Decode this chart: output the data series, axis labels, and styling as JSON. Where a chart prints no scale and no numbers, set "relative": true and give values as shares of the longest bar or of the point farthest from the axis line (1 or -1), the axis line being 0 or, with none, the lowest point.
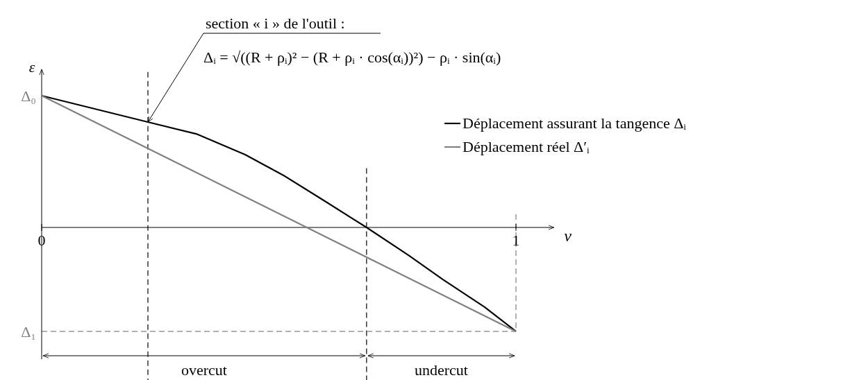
{
  "chart_data": {
    "type": "line",
    "relative": true,
    "xlabel": "v",
    "ylabel": "ε",
    "xlim": [
      0,
      1.08
    ],
    "xticks": [
      0,
      1
    ],
    "series": [
      {
        "name": "Déplacement assurant la tangence Δᵢ",
        "color": "#000000",
        "values": [
          1,
          0.8,
          0.71,
          0.553,
          0.395,
          0.2,
          0,
          -0.21,
          -0.395,
          -0.605,
          -0.789
        ],
        "x": [
          0,
          0.224,
          0.326,
          0.429,
          0.51,
          0.597,
          0.685,
          0.773,
          0.846,
          0.934,
          1
        ]
      },
      {
        "name": "Déplacement réel Δ′ᵢ",
        "color": "#808080",
        "values": [
          1,
          -0.789
        ],
        "x": [
          0,
          1
        ]
      }
    ],
    "ref_lines": [
      {
        "axis": "x",
        "value": 0.224,
        "color": "#000000",
        "line_style": "dashed"
      },
      {
        "axis": "x",
        "value": 0.685,
        "color": "#000000",
        "line_style": "dashed"
      },
      {
        "axis": "x",
        "value": 1,
        "color": "#808080",
        "line_style": "dashed"
      },
      {
        "axis": "y",
        "value": -0.789,
        "color": "#808080",
        "line_style": "dashed"
      }
    ],
    "annotations": [
      "overcut",
      "undercut",
      "section « i » de l'outil :",
      "Δᵢ = √((R + ρᵢ)² − (R + ρᵢ · cos(αᵢ))²) − ρᵢ · sin(αᵢ)",
      "Δ₀",
      "Δ₁"
    ],
    "legend": "top right",
    "line_style": "solid",
    "marker": "none",
    "grid": false
  }
}
